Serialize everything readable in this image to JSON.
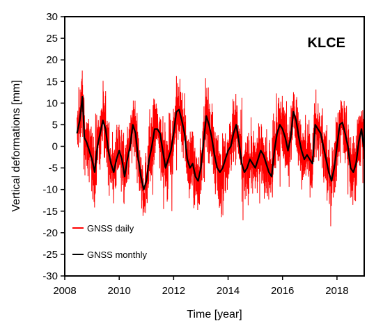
{
  "chart_data": {
    "type": "line",
    "station_label": "KLCE",
    "xlabel": "Time [year]",
    "ylabel": "Vertical deformations [mm]",
    "xlim": [
      2008,
      2019
    ],
    "ylim": [
      -30,
      30
    ],
    "xticks": [
      2008,
      2010,
      2012,
      2014,
      2016,
      2018
    ],
    "yticks": [
      30,
      25,
      20,
      15,
      10,
      5,
      0,
      -5,
      -10,
      -15,
      -20,
      -25,
      -30
    ],
    "grid": false,
    "legend_position": "bottom-left",
    "series": [
      {
        "name": "GNSS daily",
        "color": "#ff0000",
        "style": "noisy daily series, envelope approx monthly +/- 6 mm, extremes ~19 mm and ~-18 mm"
      },
      {
        "name": "GNSS monthly",
        "color": "#000000",
        "x": [
          2008.45,
          2008.55,
          2008.65,
          2008.72,
          2008.8,
          2008.9,
          2009.0,
          2009.1,
          2009.2,
          2009.3,
          2009.4,
          2009.5,
          2009.6,
          2009.7,
          2009.8,
          2009.9,
          2010.0,
          2010.1,
          2010.2,
          2010.3,
          2010.4,
          2010.5,
          2010.6,
          2010.7,
          2010.8,
          2010.9,
          2011.0,
          2011.1,
          2011.2,
          2011.3,
          2011.4,
          2011.5,
          2011.6,
          2011.7,
          2011.8,
          2011.9,
          2012.0,
          2012.1,
          2012.2,
          2012.3,
          2012.4,
          2012.5,
          2012.6,
          2012.7,
          2012.8,
          2012.9,
          2013.0,
          2013.1,
          2013.2,
          2013.3,
          2013.4,
          2013.5,
          2013.6,
          2013.7,
          2013.8,
          2013.9,
          2014.0,
          2014.1,
          2014.2,
          2014.3,
          2014.4,
          2014.5,
          2014.6,
          2014.7,
          2014.8,
          2014.9,
          2015.0,
          2015.1,
          2015.2,
          2015.3,
          2015.4,
          2015.5,
          2015.6,
          2015.7,
          2015.8,
          2015.9,
          2016.0,
          2016.1,
          2016.2,
          2016.3,
          2016.4,
          2016.5,
          2016.6,
          2016.7,
          2016.8,
          2016.9,
          2017.0,
          2017.1,
          2017.2,
          2017.3,
          2017.4,
          2017.5,
          2017.6,
          2017.7,
          2017.8,
          2017.9,
          2018.0,
          2018.1,
          2018.2,
          2018.3,
          2018.4,
          2018.5,
          2018.6,
          2018.7,
          2018.8,
          2018.9,
          2019.0
        ],
        "y": [
          3,
          6,
          11.5,
          2,
          1,
          -1,
          -3,
          -6,
          0,
          3,
          6,
          4,
          -1,
          -4,
          -6,
          -3,
          -1,
          -3,
          -7,
          -3,
          0,
          5,
          3,
          -3,
          -7,
          -10,
          -8,
          -3,
          0,
          4,
          4,
          3,
          -1,
          -5,
          -3,
          -1,
          3,
          8,
          8.5,
          6,
          3,
          -3,
          -5,
          -4,
          -7,
          -8,
          -5,
          1,
          7,
          5,
          2,
          -2,
          -5,
          -6,
          -5,
          -3,
          -1,
          0,
          3,
          5,
          1,
          -4,
          -6,
          -5,
          -3,
          -4,
          -5,
          -3,
          -1,
          -2,
          -4,
          -6,
          -7,
          -1,
          3,
          5,
          4,
          2,
          -1,
          2,
          8,
          6,
          2,
          -1,
          -3,
          -2,
          -3,
          -4,
          5,
          4,
          3,
          0,
          -3,
          -6,
          -8,
          -5,
          0,
          5,
          5.5,
          3,
          0,
          -5,
          -6,
          -4,
          1,
          4,
          -1
        ]
      }
    ]
  }
}
